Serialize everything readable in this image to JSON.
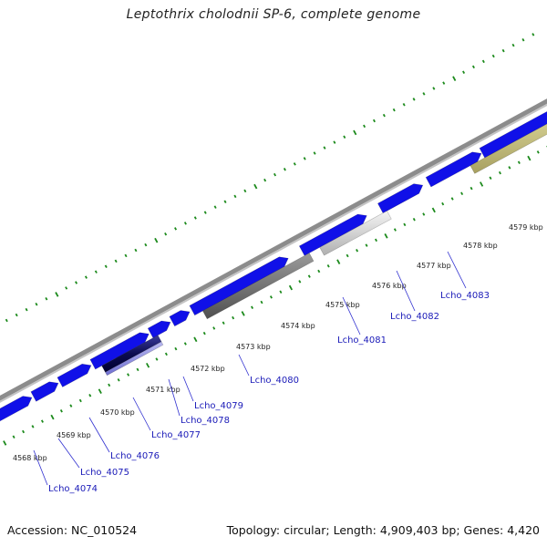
{
  "title": "Leptothrix cholodnii SP-6, complete genome",
  "accession": "Accession: NC_010524",
  "summary": "Topology: circular; Length: 4,909,403 bp; Genes: 4,420",
  "colors": {
    "backbone": "#8c8c8c",
    "forward_gene": "#1010e8",
    "tick_minor": "#1c8a1c",
    "tick_major": "#1c6a1c",
    "label_line": "#3030d0",
    "label_text": "#1a1ab8"
  },
  "scale_labels": [
    "4568 kbp",
    "4569 kbp",
    "4570 kbp",
    "4571 kbp",
    "4572 kbp",
    "4573 kbp",
    "4574 kbp",
    "4575 kbp",
    "4576 kbp",
    "4577 kbp",
    "4578 kbp",
    "4579 kbp"
  ],
  "reverse_genes": [
    {
      "name": "Lcho_4074"
    },
    {
      "name": "Lcho_4075"
    },
    {
      "name": "Lcho_4076"
    },
    {
      "name": "Lcho_4077"
    },
    {
      "name": "Lcho_4078"
    },
    {
      "name": "Lcho_4079"
    },
    {
      "name": "Lcho_4080"
    },
    {
      "name": "Lcho_4081"
    },
    {
      "name": "Lcho_4082"
    },
    {
      "name": "Lcho_4083"
    }
  ]
}
